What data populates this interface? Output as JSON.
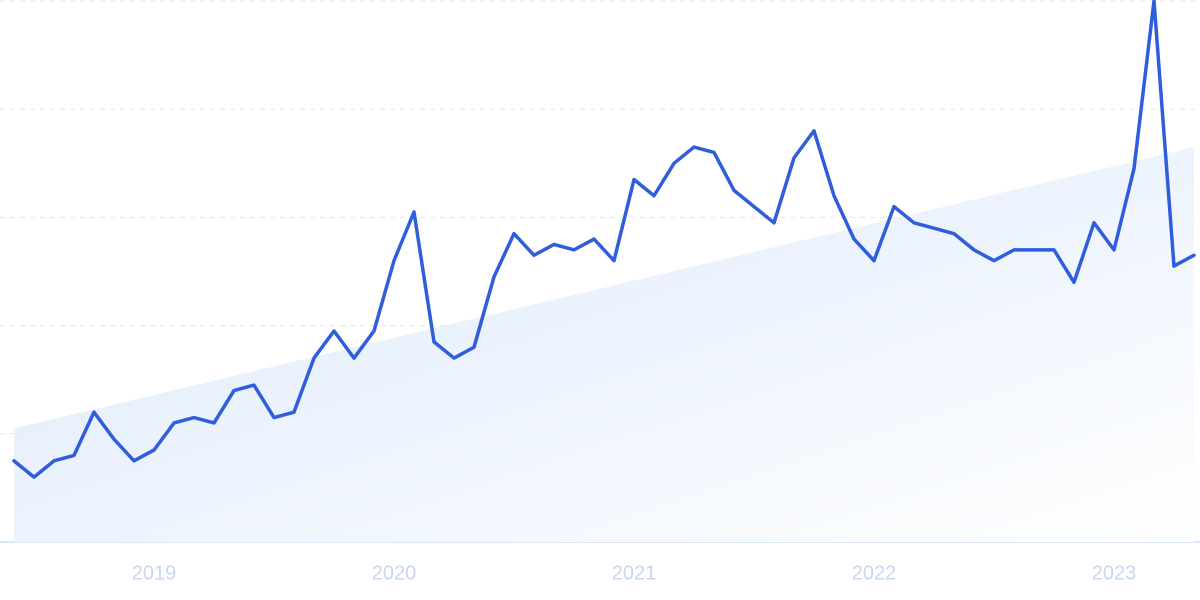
{
  "chart_data": {
    "type": "line",
    "categories": [
      null,
      null,
      null,
      null,
      null,
      null,
      null,
      "2019",
      null,
      null,
      null,
      null,
      null,
      null,
      null,
      null,
      null,
      null,
      null,
      "2020",
      null,
      null,
      null,
      null,
      null,
      null,
      null,
      null,
      null,
      null,
      null,
      "2021",
      null,
      null,
      null,
      null,
      null,
      null,
      null,
      null,
      null,
      null,
      null,
      "2022",
      null,
      null,
      null,
      null,
      null,
      null,
      null,
      null,
      null,
      null,
      null,
      "2023",
      null,
      null,
      null,
      null
    ],
    "series": [
      {
        "color": "#2f5ddb",
        "values": [
          15,
          12,
          15,
          16,
          24,
          19,
          15,
          17,
          22,
          23,
          22,
          28,
          29,
          23,
          24,
          34,
          39,
          34,
          39,
          52,
          61,
          37,
          34,
          36,
          49,
          57,
          53,
          55,
          54,
          56,
          52,
          67,
          64,
          70,
          73,
          72,
          65,
          62,
          59,
          71,
          76,
          64,
          56,
          52,
          62,
          59,
          58,
          57,
          54,
          52,
          54,
          54,
          54,
          48,
          59,
          54,
          69,
          100,
          51,
          53
        ]
      }
    ],
    "trend": {
      "color": "#dbe8fb",
      "values": [
        21,
        73
      ]
    },
    "ylim": [
      0,
      100
    ],
    "yticks": [
      0,
      20,
      40,
      60,
      80,
      100
    ],
    "grid": true
  }
}
